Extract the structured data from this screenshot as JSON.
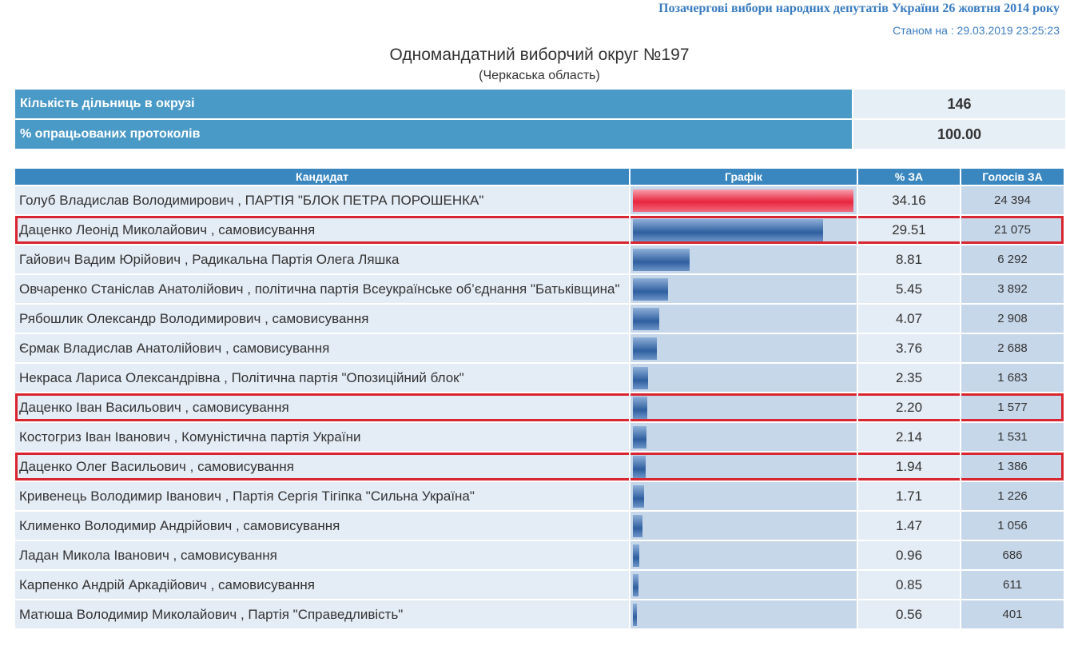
{
  "header": {
    "election": "Позачергові вибори народних депутатів України 26 жовтня 2014 року",
    "status": "Станом на : 29.03.2019 23:25:23"
  },
  "title": "Одномандатний виборчий округ №197",
  "region": "(Черкаська область)",
  "summary": [
    {
      "label": "Кількість дільниць в окрузі",
      "value": "146"
    },
    {
      "label": "% опрацьованих протоколів",
      "value": "100.00"
    }
  ],
  "table": {
    "columns": [
      "Кандидат",
      "Графік",
      "% ЗА",
      "Голосів ЗА"
    ],
    "rows": [
      {
        "candidate": "Голуб Владислав Володимирович , ПАРТІЯ \"БЛОК ПЕТРА ПОРОШЕНКА\"",
        "pct": "34.16",
        "votes": "24 394"
      },
      {
        "candidate": "Даценко Леонід Миколайович , самовисування",
        "pct": "29.51",
        "votes": "21 075"
      },
      {
        "candidate": "Гайович Вадим Юрійович , Радикальна Партія Олега Ляшка",
        "pct": "8.81",
        "votes": "6 292"
      },
      {
        "candidate": "Овчаренко Станіслав Анатолійович , політична партія Всеукраїнське об’єднання \"Батьківщина\"",
        "pct": "5.45",
        "votes": "3 892"
      },
      {
        "candidate": "Рябошлик Олександр Володимирович , самовисування",
        "pct": "4.07",
        "votes": "2 908"
      },
      {
        "candidate": "Єрмак Владислав Анатолійович , самовисування",
        "pct": "3.76",
        "votes": "2 688"
      },
      {
        "candidate": "Некраса Лариса Олександрівна , Політична партія \"Опозиційний блок\"",
        "pct": "2.35",
        "votes": "1 683"
      },
      {
        "candidate": "Даценко Іван Васильович , самовисування",
        "pct": "2.20",
        "votes": "1 577"
      },
      {
        "candidate": "Костогриз Іван Іванович , Комуністична партія України",
        "pct": "2.14",
        "votes": "1 531"
      },
      {
        "candidate": "Даценко Олег Васильович , самовисування",
        "pct": "1.94",
        "votes": "1 386"
      },
      {
        "candidate": "Кривенець Володимир Іванович , Партія Сергія Тігіпка \"Сильна Україна\"",
        "pct": "1.71",
        "votes": "1 226"
      },
      {
        "candidate": "Клименко Володимир Андрійович , самовисування",
        "pct": "1.47",
        "votes": "1 056"
      },
      {
        "candidate": "Ладан Микола Іванович , самовисування",
        "pct": "0.96",
        "votes": "686"
      },
      {
        "candidate": "Карпенко Андрій Аркадійович , самовисування",
        "pct": "0.85",
        "votes": "611"
      },
      {
        "candidate": "Матюша Володимир Миколайович , Партія \"Справедливість\"",
        "pct": "0.56",
        "votes": "401"
      }
    ]
  }
}
